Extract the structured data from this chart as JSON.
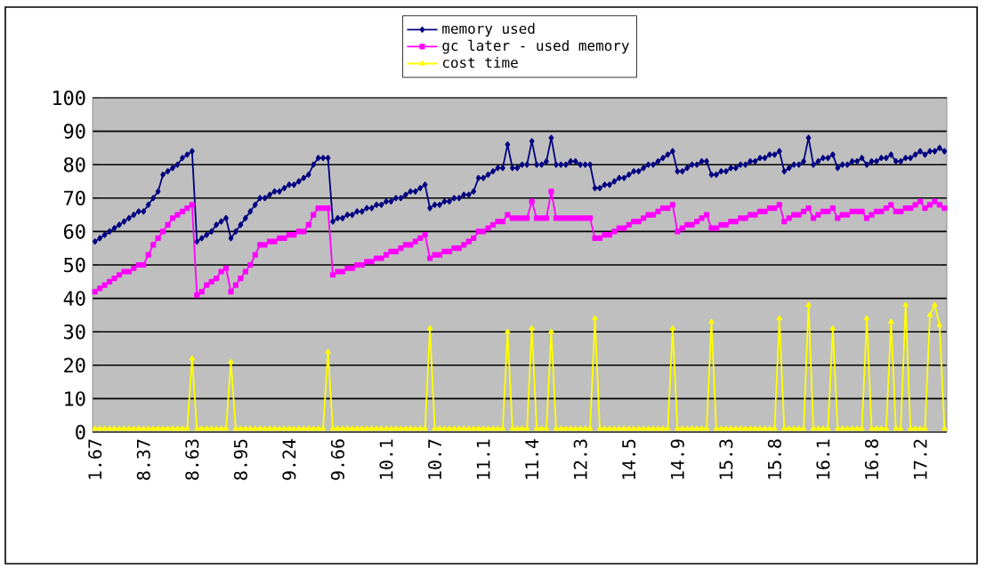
{
  "chart_data": {
    "type": "line",
    "categories": [
      "1.67",
      null,
      null,
      null,
      null,
      null,
      null,
      null,
      null,
      null,
      "8.37",
      null,
      null,
      null,
      null,
      null,
      null,
      null,
      null,
      null,
      "8.63",
      null,
      null,
      null,
      null,
      null,
      null,
      null,
      null,
      null,
      "8.95",
      null,
      null,
      null,
      null,
      null,
      null,
      null,
      null,
      null,
      "9.24",
      null,
      null,
      null,
      null,
      null,
      null,
      null,
      null,
      null,
      "9.66",
      null,
      null,
      null,
      null,
      null,
      null,
      null,
      null,
      null,
      "10.1",
      null,
      null,
      null,
      null,
      null,
      null,
      null,
      null,
      null,
      "10.7",
      null,
      null,
      null,
      null,
      null,
      null,
      null,
      null,
      null,
      "11.1",
      null,
      null,
      null,
      null,
      null,
      null,
      null,
      null,
      null,
      "11.4",
      null,
      null,
      null,
      null,
      null,
      null,
      null,
      null,
      null,
      "12.3",
      null,
      null,
      null,
      null,
      null,
      null,
      null,
      null,
      null,
      "14.5",
      null,
      null,
      null,
      null,
      null,
      null,
      null,
      null,
      null,
      "14.9",
      null,
      null,
      null,
      null,
      null,
      null,
      null,
      null,
      null,
      "15.3",
      null,
      null,
      null,
      null,
      null,
      null,
      null,
      null,
      null,
      "15.8",
      null,
      null,
      null,
      null,
      null,
      null,
      null,
      null,
      null,
      "16.1",
      null,
      null,
      null,
      null,
      null,
      null,
      null,
      null,
      null,
      "16.8",
      null,
      null,
      null,
      null,
      null,
      null,
      null,
      null,
      null,
      "17.2",
      null,
      null,
      null,
      null,
      null
    ],
    "series": [
      {
        "name": "memory used",
        "color": "#000080",
        "marker": "diamond",
        "values": [
          57,
          58,
          59,
          60,
          61,
          62,
          63,
          64,
          65,
          66,
          66,
          68,
          70,
          72,
          77,
          78,
          79,
          80,
          82,
          83,
          84,
          57,
          58,
          59,
          60,
          62,
          63,
          64,
          58,
          60,
          62,
          64,
          66,
          68,
          70,
          70,
          71,
          72,
          72,
          73,
          74,
          74,
          75,
          76,
          77,
          80,
          82,
          82,
          82,
          63,
          64,
          64,
          65,
          65,
          66,
          66,
          67,
          67,
          68,
          68,
          69,
          69,
          70,
          70,
          71,
          72,
          72,
          73,
          74,
          67,
          68,
          68,
          69,
          69,
          70,
          70,
          71,
          71,
          72,
          76,
          76,
          77,
          78,
          79,
          79,
          86,
          79,
          79,
          80,
          80,
          87,
          80,
          80,
          81,
          88,
          80,
          80,
          80,
          81,
          81,
          80,
          80,
          80,
          73,
          73,
          74,
          74,
          75,
          76,
          76,
          77,
          78,
          78,
          79,
          80,
          80,
          81,
          82,
          83,
          84,
          78,
          78,
          79,
          80,
          80,
          81,
          81,
          77,
          77,
          78,
          78,
          79,
          79,
          80,
          80,
          81,
          81,
          82,
          82,
          83,
          83,
          84,
          78,
          79,
          80,
          80,
          81,
          88,
          80,
          81,
          82,
          82,
          83,
          79,
          80,
          80,
          81,
          81,
          82,
          80,
          81,
          81,
          82,
          82,
          83,
          81,
          81,
          82,
          82,
          83,
          84,
          83,
          84,
          84,
          85,
          84
        ]
      },
      {
        "name": "gc later - used memory",
        "color": "#ff00ff",
        "marker": "square",
        "values": [
          42,
          43,
          44,
          45,
          46,
          47,
          48,
          48,
          49,
          50,
          50,
          53,
          56,
          58,
          60,
          62,
          64,
          65,
          66,
          67,
          68,
          41,
          42,
          44,
          45,
          46,
          48,
          49,
          42,
          44,
          46,
          48,
          50,
          53,
          56,
          56,
          57,
          57,
          58,
          58,
          59,
          59,
          60,
          60,
          62,
          65,
          67,
          67,
          67,
          47,
          48,
          48,
          49,
          49,
          50,
          50,
          51,
          51,
          52,
          52,
          53,
          54,
          54,
          55,
          56,
          56,
          57,
          58,
          59,
          52,
          53,
          53,
          54,
          54,
          55,
          55,
          56,
          57,
          58,
          60,
          60,
          61,
          62,
          63,
          63,
          65,
          64,
          64,
          64,
          64,
          69,
          64,
          64,
          64,
          72,
          64,
          64,
          64,
          64,
          64,
          64,
          64,
          64,
          58,
          58,
          59,
          59,
          60,
          61,
          61,
          62,
          63,
          63,
          64,
          65,
          65,
          66,
          67,
          67,
          68,
          60,
          61,
          62,
          62,
          63,
          64,
          65,
          61,
          61,
          62,
          62,
          63,
          63,
          64,
          64,
          65,
          65,
          66,
          66,
          67,
          67,
          68,
          63,
          64,
          65,
          65,
          66,
          67,
          64,
          65,
          66,
          66,
          67,
          64,
          65,
          65,
          66,
          66,
          66,
          64,
          65,
          66,
          66,
          67,
          68,
          66,
          66,
          67,
          67,
          68,
          69,
          67,
          68,
          69,
          68,
          67
        ]
      },
      {
        "name": "cost time",
        "color": "#ffff00",
        "marker": "triangle",
        "values": [
          1,
          1,
          1,
          1,
          1,
          1,
          1,
          1,
          1,
          1,
          1,
          1,
          1,
          1,
          1,
          1,
          1,
          1,
          1,
          1,
          22,
          1,
          1,
          1,
          1,
          1,
          1,
          1,
          21,
          1,
          1,
          1,
          1,
          1,
          1,
          1,
          1,
          1,
          1,
          1,
          1,
          1,
          1,
          1,
          1,
          1,
          1,
          1,
          24,
          1,
          1,
          1,
          1,
          1,
          1,
          1,
          1,
          1,
          1,
          1,
          1,
          1,
          1,
          1,
          1,
          1,
          1,
          1,
          1,
          31,
          1,
          1,
          1,
          1,
          1,
          1,
          1,
          1,
          1,
          1,
          1,
          1,
          1,
          1,
          1,
          30,
          1,
          1,
          1,
          1,
          31,
          1,
          1,
          1,
          30,
          1,
          1,
          1,
          1,
          1,
          1,
          1,
          1,
          34,
          1,
          1,
          1,
          1,
          1,
          1,
          1,
          1,
          1,
          1,
          1,
          1,
          1,
          1,
          1,
          31,
          1,
          1,
          1,
          1,
          1,
          1,
          1,
          33,
          1,
          1,
          1,
          1,
          1,
          1,
          1,
          1,
          1,
          1,
          1,
          1,
          1,
          34,
          1,
          1,
          1,
          1,
          1,
          38,
          1,
          1,
          1,
          1,
          31,
          1,
          1,
          1,
          1,
          1,
          1,
          34,
          1,
          1,
          1,
          1,
          33,
          1,
          1,
          38,
          1,
          1,
          1,
          1,
          35,
          38,
          32,
          1
        ]
      }
    ],
    "ylim": [
      0,
      100
    ],
    "yticks": [
      0,
      10,
      20,
      30,
      40,
      50,
      60,
      70,
      80,
      90,
      100
    ],
    "grid": "y",
    "legend": "top"
  }
}
